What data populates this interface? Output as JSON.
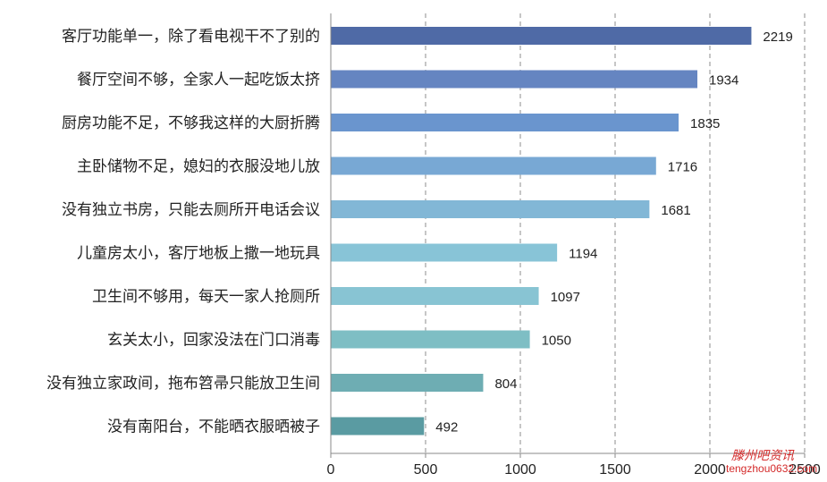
{
  "chart_data": {
    "type": "bar",
    "orientation": "horizontal",
    "categories": [
      "客厅功能单一，除了看电视干不了别的",
      "餐厅空间不够，全家人一起吃饭太挤",
      "厨房功能不足，不够我这样的大厨折腾",
      "主卧储物不足，媳妇的衣服没地儿放",
      "没有独立书房，只能去厕所开电话会议",
      "儿童房太小，客厅地板上撒一地玩具",
      "卫生间不够用，每天一家人抢厕所",
      "玄关太小，回家没法在门口消毒",
      "没有独立家政间，拖布笤帚只能放卫生间",
      "没有南阳台，不能晒衣服晒被子"
    ],
    "values": [
      2219,
      1934,
      1835,
      1716,
      1681,
      1194,
      1097,
      1050,
      804,
      492
    ],
    "data_labels": [
      "2219",
      "1934",
      "1835",
      "1716",
      "1681",
      "1194",
      "1097",
      "1050",
      "804",
      "492"
    ],
    "bar_colors": [
      "#4f6aa6",
      "#6585c1",
      "#6a95ce",
      "#78a8d4",
      "#82b7d6",
      "#88c4d7",
      "#88c4d3",
      "#7ebec4",
      "#6eadb3",
      "#5a9ba2"
    ],
    "xlim": [
      0,
      2500
    ],
    "xticks": [
      0,
      500,
      1000,
      1500,
      2000,
      2500
    ],
    "xtick_labels": [
      "0",
      "500",
      "1000",
      "1500",
      "2000",
      "2500"
    ],
    "grid": "vertical dashed",
    "legend": "none",
    "title": "",
    "xlabel": "",
    "ylabel": ""
  },
  "watermark": {
    "name": "滕州吧资讯",
    "url": "tengzhou0632.com"
  }
}
